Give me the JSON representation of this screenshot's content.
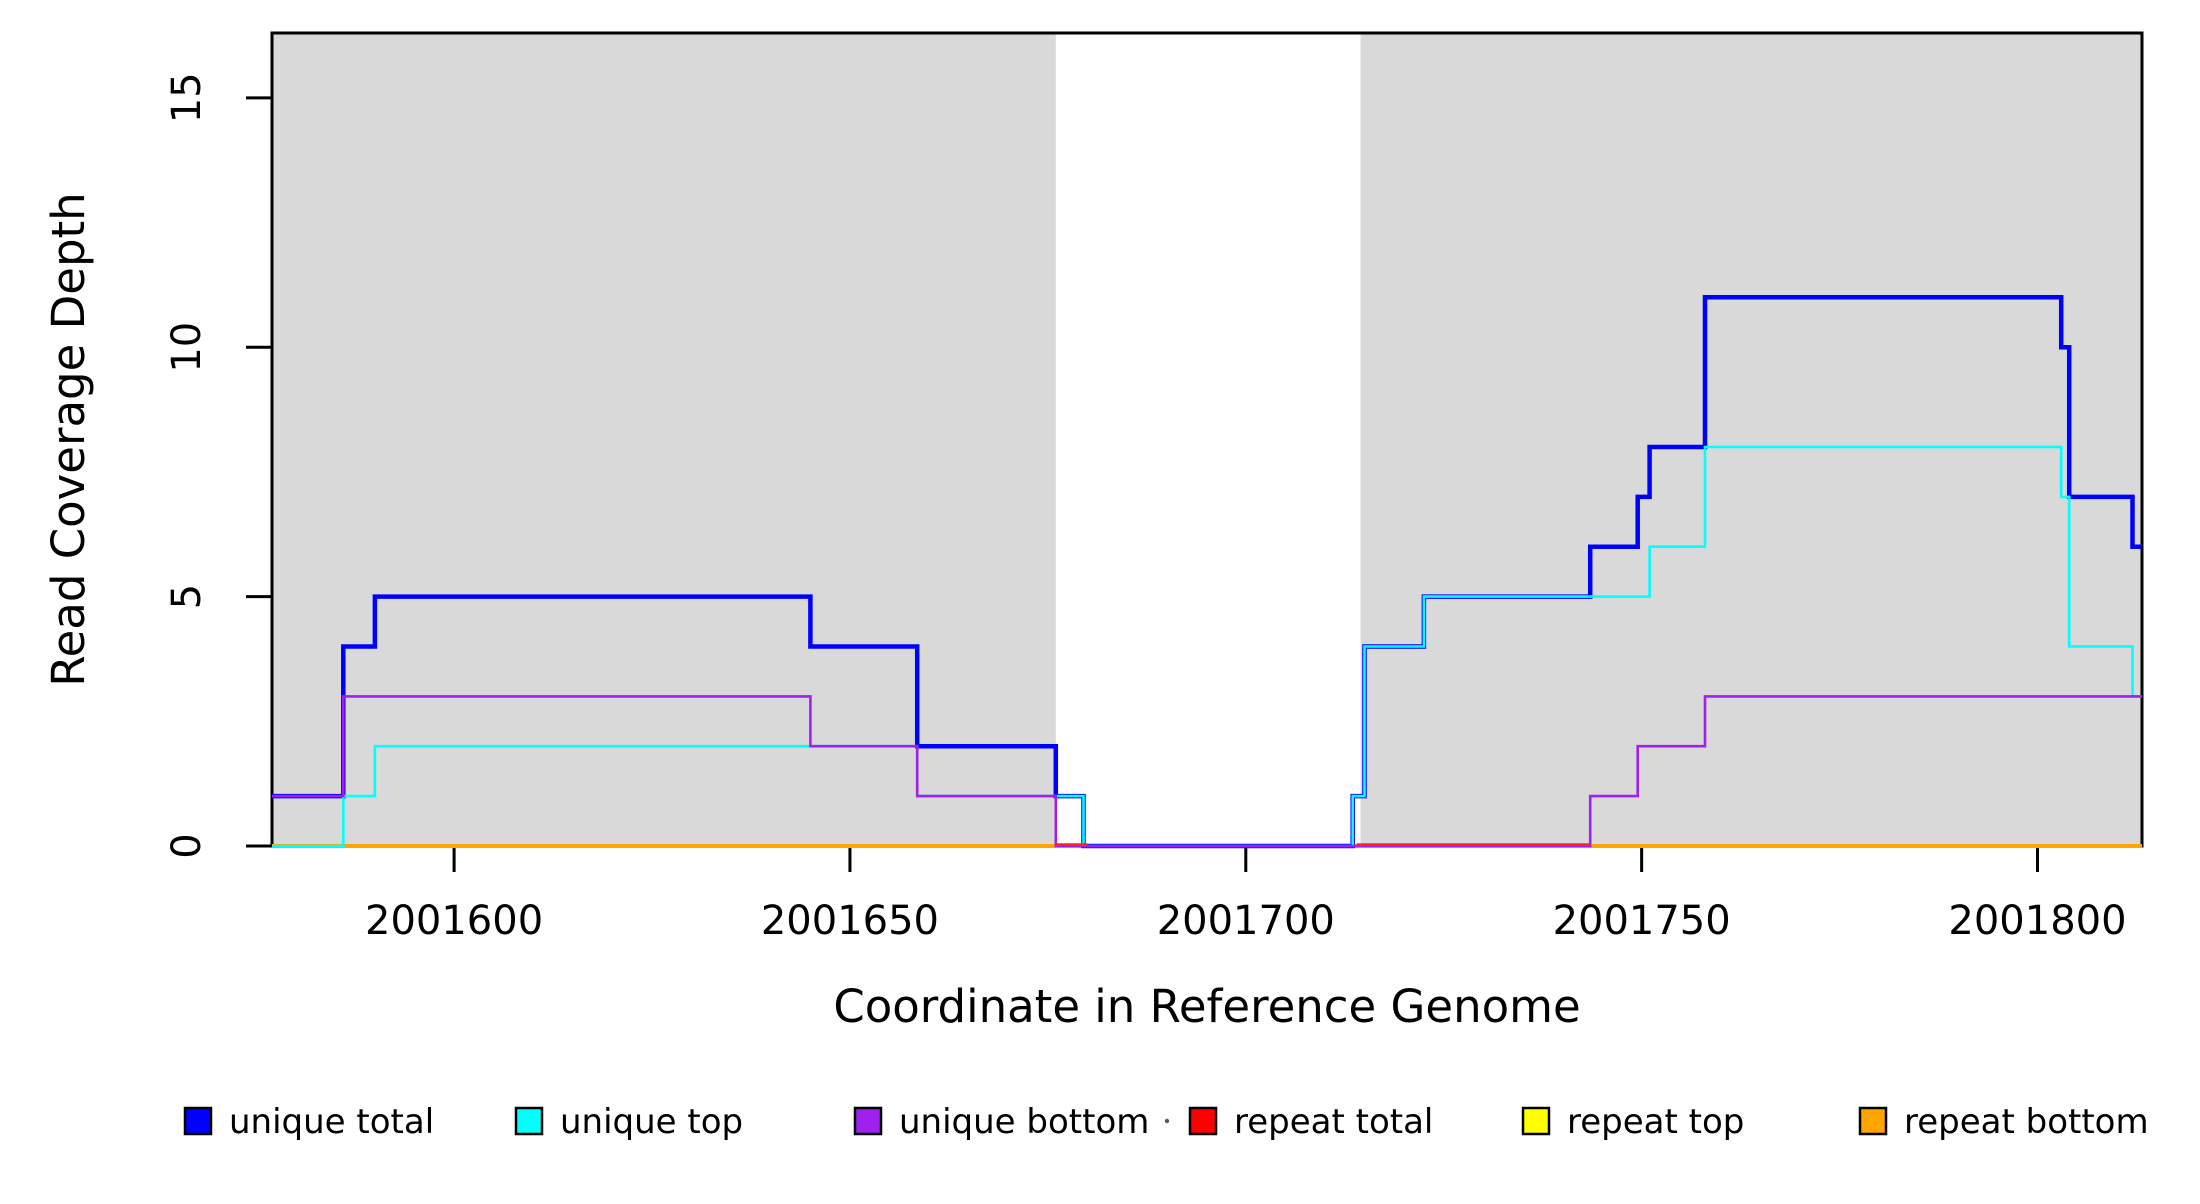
{
  "figure": {
    "background": "#ffffff",
    "panel_shade_color": "#d9d9d9",
    "axis_color": "#000000"
  },
  "chart_data": {
    "type": "line",
    "subtype": "step-coverage",
    "title": "",
    "xlabel": "Coordinate in Reference Genome",
    "ylabel": "Read Coverage Depth",
    "xlim": [
      2001577,
      2001813.2
    ],
    "ylim": [
      0,
      16.3
    ],
    "x_ticks": [
      2001600,
      2001650,
      2001700,
      2001750,
      2001800
    ],
    "y_ticks": [
      0,
      5,
      10,
      15
    ],
    "grid": false,
    "legend_position": "bottom",
    "shaded_regions": [
      {
        "from": 2001577,
        "to": 2001676,
        "color": "#d9d9d9"
      },
      {
        "from": 2001714.5,
        "to": 2001813.2,
        "color": "#d9d9d9"
      }
    ],
    "series": [
      {
        "name": "unique total",
        "color": "#0000ff",
        "width": 4.5,
        "steps": [
          [
            2001577,
            1
          ],
          [
            2001586,
            4
          ],
          [
            2001590,
            5
          ],
          [
            2001645,
            4
          ],
          [
            2001658.5,
            2
          ],
          [
            2001676,
            1
          ],
          [
            2001679.5,
            0
          ],
          [
            2001713.5,
            1
          ],
          [
            2001715,
            4
          ],
          [
            2001722.5,
            5
          ],
          [
            2001743.5,
            6
          ],
          [
            2001749.5,
            7
          ],
          [
            2001751,
            8
          ],
          [
            2001758,
            11
          ],
          [
            2001803,
            10
          ],
          [
            2001804,
            7
          ],
          [
            2001812,
            6
          ],
          [
            2001813.2,
            6
          ]
        ]
      },
      {
        "name": "unique top",
        "color": "#00ffff",
        "width": 2.6,
        "steps": [
          [
            2001577,
            0
          ],
          [
            2001586,
            1
          ],
          [
            2001590,
            2
          ],
          [
            2001658.5,
            1
          ],
          [
            2001679.5,
            0
          ],
          [
            2001713.5,
            1
          ],
          [
            2001715,
            4
          ],
          [
            2001722.5,
            5
          ],
          [
            2001751,
            6
          ],
          [
            2001758,
            8
          ],
          [
            2001803,
            7
          ],
          [
            2001804,
            4
          ],
          [
            2001812,
            3
          ],
          [
            2001813.2,
            3
          ]
        ]
      },
      {
        "name": "unique bottom",
        "color": "#a020f0",
        "width": 2.6,
        "steps": [
          [
            2001577,
            1
          ],
          [
            2001586,
            3
          ],
          [
            2001645,
            2
          ],
          [
            2001658.5,
            1
          ],
          [
            2001676,
            0
          ],
          [
            2001743.5,
            1
          ],
          [
            2001749.5,
            2
          ],
          [
            2001758,
            3
          ],
          [
            2001813.2,
            3
          ]
        ]
      },
      {
        "name": "repeat total",
        "color": "#ff0000",
        "width": 2.4,
        "steps": [
          [
            2001577,
            0
          ],
          [
            2001813.2,
            0
          ]
        ]
      },
      {
        "name": "repeat top",
        "color": "#ffff00",
        "width": 2.4,
        "steps": [
          [
            2001577,
            0
          ],
          [
            2001813.2,
            0
          ]
        ]
      },
      {
        "name": "repeat bottom",
        "color": "#ffa500",
        "width": 4,
        "steps": [
          [
            2001577,
            0
          ],
          [
            2001813.2,
            0
          ]
        ]
      }
    ],
    "zero_line_overlays": [
      {
        "from": 2001676,
        "to": 2001680,
        "color": "#ff2222",
        "width": 2.4
      },
      {
        "from": 2001714,
        "to": 2001743.5,
        "color": "#ff2222",
        "width": 2.4
      }
    ]
  },
  "legend": {
    "items": [
      {
        "label": "unique total",
        "color": "#0000ff"
      },
      {
        "label": "unique top",
        "color": "#00ffff"
      },
      {
        "label": "unique bottom",
        "color": "#a020f0"
      },
      {
        "label": "repeat total",
        "color": "#ff0000"
      },
      {
        "label": "repeat top",
        "color": "#ffff00"
      },
      {
        "label": "repeat bottom",
        "color": "#ffa500"
      }
    ]
  }
}
